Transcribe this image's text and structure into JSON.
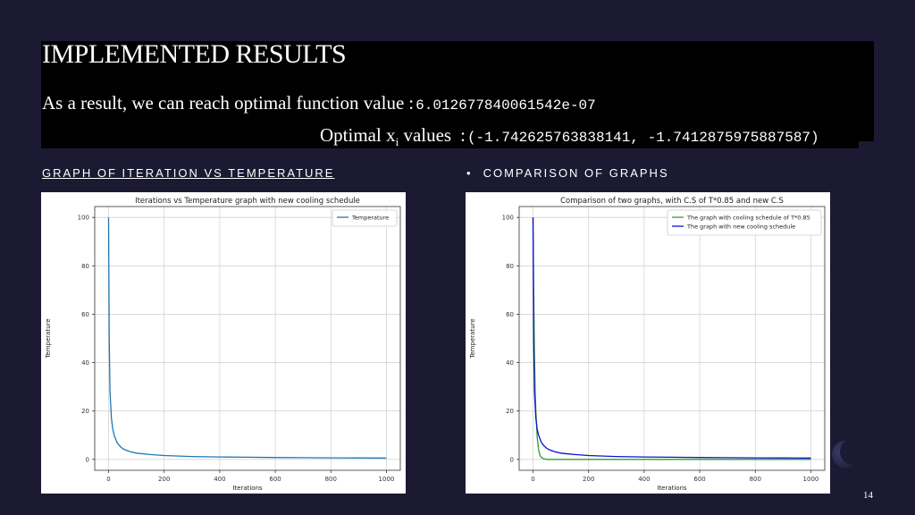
{
  "slide": {
    "title": "IMPLEMENTED RESULTS",
    "result_text": "As a result, we can reach optimal function value",
    "colon": ":",
    "result_value": "6.012677840061542e-07",
    "optimal_label_main": "Optimal x",
    "optimal_label_sub": "i",
    "optimal_label_tail": " values",
    "optimal_value": "(-1.742625763838141, -1.7412875975887587)",
    "left_heading": "GRAPH OF ITERATION VS TEMPERATURE",
    "right_heading": "COMPARISON OF GRAPHS",
    "bullet": "•",
    "page_number": "14"
  },
  "colors": {
    "background": "#1c1a32",
    "blue_series": "#1f77b4",
    "green_series": "#2ca02c",
    "navy_series": "#1010d0"
  },
  "chart_data": [
    {
      "type": "line",
      "title": "Iterations vs Temperature graph with new cooling schedule",
      "xlabel": "Iterations",
      "ylabel": "Temperature",
      "xlim": [
        0,
        1000
      ],
      "ylim": [
        0,
        100
      ],
      "xticks": [
        "0",
        "200",
        "400",
        "600",
        "800",
        "1000"
      ],
      "yticks": [
        "0",
        "20",
        "40",
        "60",
        "80",
        "100"
      ],
      "grid": true,
      "legend_position": "top-right",
      "series": [
        {
          "name": "Temperature",
          "color": "#1f77b4",
          "x": [
            0,
            2,
            5,
            10,
            15,
            20,
            30,
            40,
            50,
            60,
            80,
            100,
            150,
            200,
            300,
            400,
            500,
            600,
            700,
            800,
            900,
            1000
          ],
          "y": [
            100,
            50,
            28,
            17,
            12.5,
            10,
            7,
            5.5,
            4.5,
            3.9,
            3.1,
            2.6,
            2,
            1.6,
            1.2,
            1,
            0.9,
            0.8,
            0.7,
            0.65,
            0.6,
            0.55
          ]
        }
      ]
    },
    {
      "type": "line",
      "title": "Comparison of two graphs, with C.S of T*0.85 and new C.S",
      "xlabel": "Iterations",
      "ylabel": "Temperature",
      "xlim": [
        0,
        1000
      ],
      "ylim": [
        0,
        100
      ],
      "xticks": [
        "0",
        "200",
        "400",
        "600",
        "800",
        "1000"
      ],
      "yticks": [
        "0",
        "20",
        "40",
        "60",
        "80",
        "100"
      ],
      "grid": true,
      "legend_position": "top-right",
      "series": [
        {
          "name": "The graph with cooling schedule of T*0.85",
          "color": "#2ca02c",
          "x": [
            0,
            2,
            5,
            8,
            10,
            15,
            20,
            25,
            30,
            40,
            50,
            60,
            80,
            100,
            200,
            400,
            600,
            800,
            1000
          ],
          "y": [
            100,
            72,
            44,
            27,
            20,
            9,
            4,
            1.7,
            0.8,
            0.2,
            0,
            0,
            0,
            0,
            0,
            0,
            0,
            0,
            0
          ]
        },
        {
          "name": "The graph with new cooling schedule",
          "color": "#1010d0",
          "x": [
            0,
            2,
            5,
            10,
            15,
            20,
            30,
            40,
            50,
            60,
            80,
            100,
            150,
            200,
            300,
            400,
            500,
            600,
            700,
            800,
            900,
            1000
          ],
          "y": [
            100,
            50,
            28,
            17,
            12.5,
            10,
            7,
            5.5,
            4.5,
            3.9,
            3.1,
            2.6,
            2,
            1.6,
            1.2,
            1,
            0.9,
            0.8,
            0.7,
            0.65,
            0.6,
            0.55
          ]
        }
      ]
    }
  ]
}
